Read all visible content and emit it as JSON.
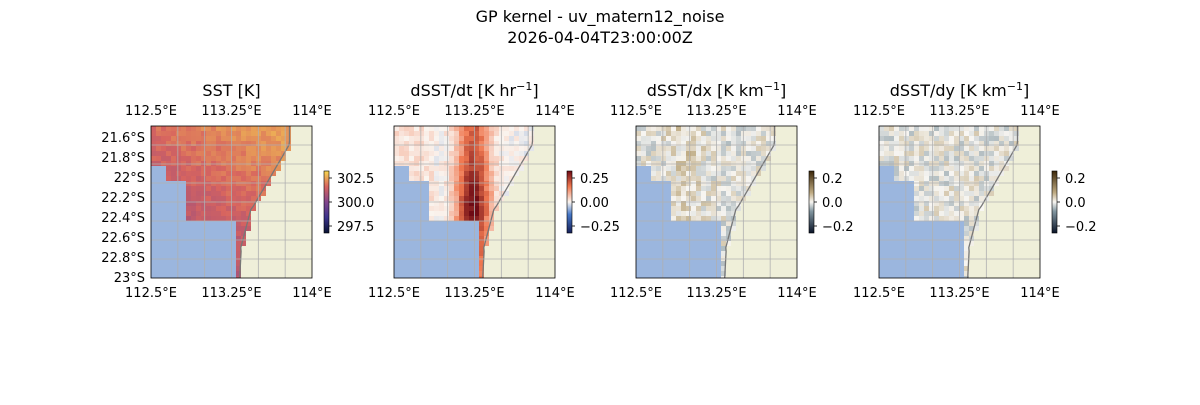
{
  "figure": {
    "title": "GP kernel - uv_matern12_noise",
    "subtitle": "2026-04-04T23:00:00Z"
  },
  "colors": {
    "land": "#efefd9",
    "ocean": "#9bb6de",
    "coast": "#777777",
    "grid": "#b0b0b0"
  },
  "chart_data": [
    {
      "type": "heatmap",
      "title_main": "SST [K]",
      "title_exp": "",
      "title_tail": "",
      "x_ticks": [
        "112.5°E",
        "113.25°E",
        "114°E"
      ],
      "y_ticks": [
        "21.6°S",
        "21.8°S",
        "22°S",
        "22.2°S",
        "22.4°S",
        "22.6°S",
        "22.8°S",
        "23°S"
      ],
      "xlim": [
        112.5,
        114.0
      ],
      "ylim": [
        -23.0,
        -21.5
      ],
      "colorbar": {
        "colormap": "thermal",
        "ticks": [
          "302.5",
          "300.0",
          "297.5"
        ],
        "range": [
          297.0,
          303.5
        ]
      },
      "grid": true
    },
    {
      "type": "heatmap",
      "title_main": "dSST/dt [K hr",
      "title_exp": "−1",
      "title_tail": "]",
      "x_ticks": [
        "112.5°E",
        "113.25°E",
        "114°E"
      ],
      "y_ticks": [],
      "xlim": [
        112.5,
        114.0
      ],
      "ylim": [
        -23.0,
        -21.5
      ],
      "colorbar": {
        "colormap": "balance",
        "ticks": [
          "0.25",
          "0.00",
          "−0.25"
        ],
        "range": [
          -0.4,
          0.4
        ]
      },
      "grid": true
    },
    {
      "type": "heatmap",
      "title_main": "dSST/dx [K km",
      "title_exp": "−1",
      "title_tail": "]",
      "x_ticks": [
        "112.5°E",
        "113.25°E",
        "114°E"
      ],
      "y_ticks": [],
      "xlim": [
        112.5,
        114.0
      ],
      "ylim": [
        -23.0,
        -21.5
      ],
      "colorbar": {
        "colormap": "diff",
        "ticks": [
          "0.2",
          "0.0",
          "−0.2"
        ],
        "range": [
          -0.2,
          0.2
        ]
      },
      "grid": true
    },
    {
      "type": "heatmap",
      "title_main": "dSST/dy [K km",
      "title_exp": "−1",
      "title_tail": "]",
      "x_ticks": [
        "112.5°E",
        "113.25°E",
        "114°E"
      ],
      "y_ticks": [],
      "xlim": [
        112.5,
        114.0
      ],
      "ylim": [
        -23.0,
        -21.5
      ],
      "colorbar": {
        "colormap": "diff",
        "ticks": [
          "0.2",
          "0.0",
          "−0.2"
        ],
        "range": [
          -0.2,
          0.2
        ]
      },
      "grid": true
    }
  ]
}
